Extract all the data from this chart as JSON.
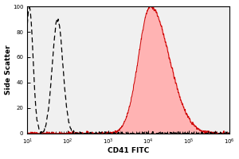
{
  "xlabel": "CD41 FITC",
  "ylabel": "Side Scatter",
  "ylim": [
    0,
    100
  ],
  "yticks": [
    0,
    20,
    40,
    60,
    80,
    100
  ],
  "ytick_labels": [
    "0",
    "20",
    "40",
    "60",
    "80",
    "100"
  ],
  "xlim_log10": [
    1,
    6
  ],
  "xtick_positions": [
    1,
    2,
    3,
    4,
    5,
    6
  ],
  "bg_color": "#f0f0f0",
  "dashed_color": "black",
  "red_fill_color": "#ffb3b3",
  "red_line_color": "#cc0000",
  "dashed_peak1_mu": 1.05,
  "dashed_peak1_sig": 0.09,
  "dashed_peak1_amp": 100,
  "dashed_peak2_mu": 1.75,
  "dashed_peak2_sig": 0.13,
  "dashed_peak2_amp": 90,
  "red_mu": 4.05,
  "red_sig": 0.42,
  "red_amp": 100,
  "noise_sigma_dashed": 2.0,
  "noise_sigma_red": 1.5,
  "random_seed": 77
}
